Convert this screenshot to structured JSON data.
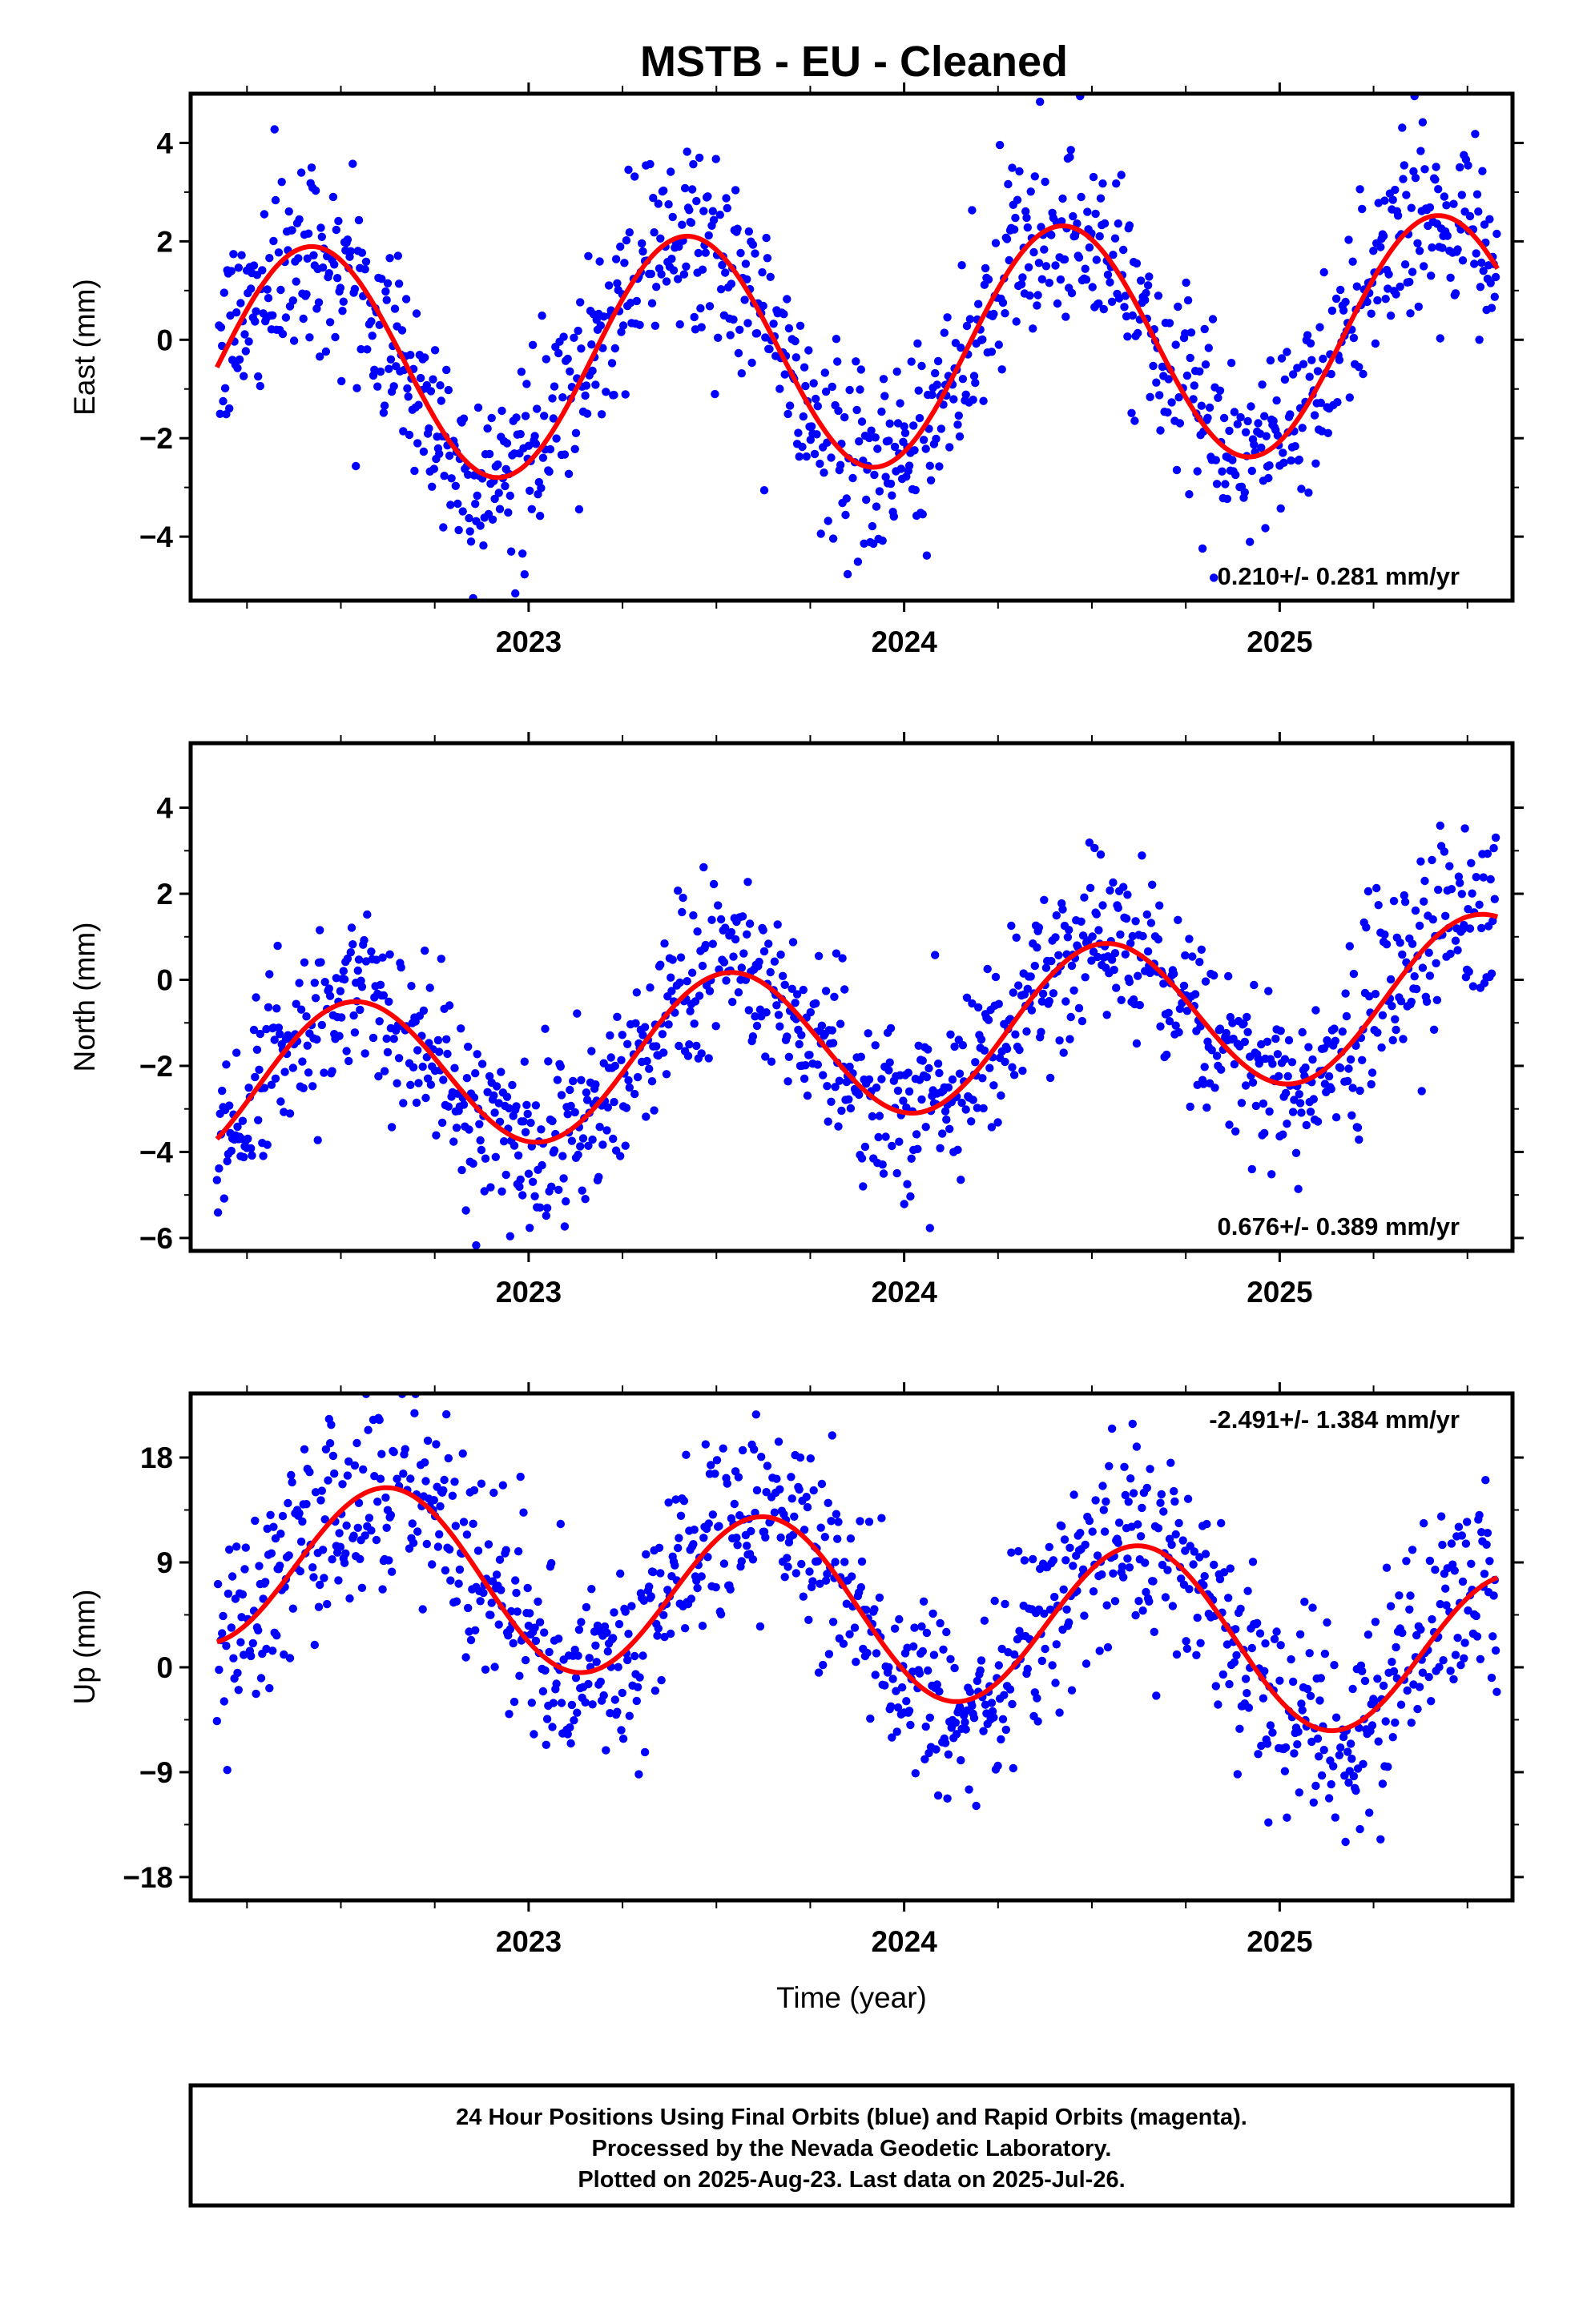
{
  "page": {
    "title": "MSTB  - EU - Cleaned"
  },
  "footer": {
    "lines": [
      "24 Hour Positions Using Final Orbits (blue) and Rapid Orbits (magenta).",
      "Processed by the Nevada Geodetic Laboratory.",
      "Plotted on 2025-Aug-23. Last data on 2025-Jul-26."
    ]
  },
  "colors": {
    "points": "#0000ff",
    "fit": "#ff0000",
    "frame": "#000000"
  },
  "chart_data": [
    {
      "type": "scatter",
      "component": "East",
      "title": "",
      "xlabel": "",
      "ylabel": "East (mm)",
      "xlim": [
        2022.1,
        2025.62
      ],
      "ylim": [
        -5.3,
        5.0
      ],
      "yticks": [
        4,
        2,
        0,
        -2,
        -4
      ],
      "ytick_labels": [
        "4",
        "2",
        "0",
        "−2",
        "−4"
      ],
      "xticks": [
        2023,
        2024,
        2025
      ],
      "xtick_labels": [
        "2023",
        "2024",
        "2025"
      ],
      "annotation": "0.210+/- 0.281 mm/yr",
      "annotation_position": "bottom-right",
      "trend_mm_per_yr": 0.21,
      "fit_model": {
        "x_start": 2022.17,
        "x_end": 2025.58,
        "offset": -0.2,
        "amplitude": 2.4,
        "phase_peak_fraction": 0.42
      },
      "scatter": {
        "x_start": 2022.17,
        "x_end": 2025.58,
        "points_per_year": 365,
        "noise_sd": 0.95
      }
    },
    {
      "type": "scatter",
      "component": "North",
      "title": "",
      "xlabel": "",
      "ylabel": "North (mm)",
      "xlim": [
        2022.1,
        2025.62
      ],
      "ylim": [
        -6.3,
        5.5
      ],
      "yticks": [
        4,
        2,
        0,
        -2,
        -4,
        -6
      ],
      "ytick_labels": [
        "4",
        "2",
        "0",
        "−2",
        "−4",
        "−6"
      ],
      "xticks": [
        2023,
        2024,
        2025
      ],
      "xtick_labels": [
        "2023",
        "2024",
        "2025"
      ],
      "annotation": "0.676+/- 0.389 mm/yr",
      "annotation_position": "bottom-right",
      "trend_mm_per_yr": 0.676,
      "fit_model": {
        "x_start": 2022.17,
        "x_end": 2025.58,
        "offset": -1.4,
        "amplitude": 1.8,
        "phase_peak_fraction": 0.53
      },
      "scatter": {
        "x_start": 2022.17,
        "x_end": 2025.58,
        "points_per_year": 365,
        "noise_sd": 1.0
      }
    },
    {
      "type": "scatter",
      "component": "Up",
      "title": "",
      "xlabel": "Time (year)",
      "ylabel": "Up (mm)",
      "xlim": [
        2022.1,
        2025.62
      ],
      "ylim": [
        -20.0,
        23.5
      ],
      "yticks": [
        18,
        9,
        0,
        -9,
        -18
      ],
      "ytick_labels": [
        "18",
        "9",
        "0",
        "−9",
        "−18"
      ],
      "xticks": [
        2023,
        2024,
        2025
      ],
      "xtick_labels": [
        "2023",
        "2024",
        "2025"
      ],
      "annotation": "-2.491+/- 1.384 mm/yr",
      "annotation_position": "top-right",
      "trend_mm_per_yr": -2.491,
      "fit_model": {
        "x_start": 2022.17,
        "x_end": 2025.58,
        "offset": 5.0,
        "amplitude": 7.3,
        "phase_peak_fraction": 0.63
      },
      "scatter": {
        "x_start": 2022.17,
        "x_end": 2025.58,
        "points_per_year": 365,
        "noise_sd": 4.2
      }
    }
  ]
}
